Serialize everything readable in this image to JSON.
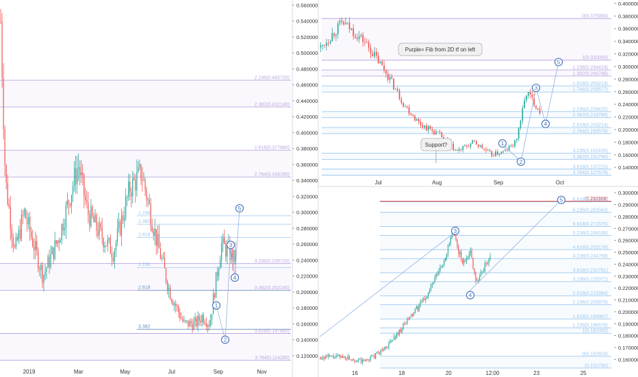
{
  "chart_data": [
    {
      "type": "candlestick",
      "panel": "left",
      "interval_label": "2D",
      "xaxis_labels": [
        "2019",
        "Mar",
        "May",
        "Jul",
        "Sep",
        "Nov"
      ],
      "yaxis_ticks": [
        "0.560000",
        "0.540000",
        "0.520000",
        "0.500000",
        "0.480000",
        "0.460000",
        "0.440000",
        "0.420000",
        "0.400000",
        "0.380000",
        "0.360000",
        "0.340000",
        "0.320000",
        "0.300000",
        "0.280000",
        "0.260000",
        "0.240000",
        "0.220000",
        "0.200000",
        "0.180000",
        "0.160000",
        "0.140000",
        "0.120000"
      ],
      "ylim": [
        0.107,
        0.563
      ],
      "fib_levels": [
        {
          "label": "2.236(0.465720)",
          "value": 0.46572,
          "color": "#b9a6e0"
        },
        {
          "label": "2.382(0.432140)",
          "value": 0.43214,
          "color": "#b9a6e0"
        },
        {
          "label": "2.618(0.377860)",
          "value": 0.37786,
          "color": "#b9a6e0"
        },
        {
          "label": "2.764(0.344280)",
          "value": 0.34428,
          "color": "#b9a6e0"
        },
        {
          "label": "3.236(0.235720)",
          "value": 0.23572,
          "color": "#b9a6e0"
        },
        {
          "label": "3.382(0.202140)",
          "value": 0.20214,
          "color": "#b9a6e0"
        },
        {
          "label": "3.618(0.147860)",
          "value": 0.14786,
          "color": "#b9a6e0"
        },
        {
          "label": "3.764(0.114280)",
          "value": 0.11428,
          "color": "#b9a6e0"
        }
      ],
      "blue_levels": [
        {
          "label": "1.236",
          "value": 0.2955,
          "color": "#9bc6ee"
        },
        {
          "label": "1.382",
          "value": 0.285,
          "color": "#9bc6ee"
        },
        {
          "label": "1.618",
          "value": 0.2684,
          "color": "#9bc6ee"
        },
        {
          "label": "2.236",
          "value": 0.2307,
          "color": "#9bc6ee"
        },
        {
          "label": "2.618",
          "value": 0.2022,
          "color": "#6a8dbf"
        },
        {
          "label": "3.382",
          "value": 0.1532,
          "color": "#6a8dbf"
        }
      ],
      "wave_labels": [
        "1",
        "2",
        "3",
        "4",
        "5"
      ]
    },
    {
      "type": "candlestick",
      "panel": "top-right",
      "xaxis_labels": [
        "Jul",
        "Aug",
        "Sep",
        "Oct"
      ],
      "yaxis_ticks": [
        "0.400000",
        "0.380000",
        "0.360000",
        "0.340000",
        "0.320000",
        "0.300000",
        "0.280000",
        "0.260000",
        "0.240000",
        "0.220000",
        "0.200000",
        "0.180000",
        "0.160000",
        "0.140000"
      ],
      "ylim": [
        0.125,
        0.401
      ],
      "fib_levels": [
        {
          "label": "0(0.375999)",
          "value": 0.375999,
          "color": "#b9a6e0"
        },
        {
          "label": "1(0.310000)",
          "value": 0.31,
          "color": "#b9a6e0"
        },
        {
          "label": "1.236(0.294424)",
          "value": 0.294424,
          "color": "#b9a6e0"
        },
        {
          "label": "1.382(0.284788)",
          "value": 0.284788,
          "color": "#b9a6e0"
        },
        {
          "label": "1.618(0.269213)",
          "value": 0.269213,
          "color": "#9bc6ee"
        },
        {
          "label": "1.764(0.259577)",
          "value": 0.259577,
          "color": "#9bc6ee"
        },
        {
          "label": "2.236(0.228425)",
          "value": 0.228425,
          "color": "#9bc6ee"
        },
        {
          "label": "2.382(0.218789)",
          "value": 0.218789,
          "color": "#9bc6ee"
        },
        {
          "label": "2.618(0.203214)",
          "value": 0.203214,
          "color": "#9bc6ee"
        },
        {
          "label": "2.764(0.193578)",
          "value": 0.193578,
          "color": "#9bc6ee"
        },
        {
          "label": "3.236(0.162426)",
          "value": 0.162426,
          "color": "#9bc6ee"
        },
        {
          "label": "3.382(0.152790)",
          "value": 0.15279,
          "color": "#9bc6ee"
        },
        {
          "label": "3.618(0.137215)",
          "value": 0.137215,
          "color": "#9bc6ee"
        },
        {
          "label": "3.764(0.127579)",
          "value": 0.127579,
          "color": "#9bc6ee"
        }
      ],
      "annotations": [
        "Purple= Fib from 2D tf on left",
        "Support?"
      ],
      "wave_labels": [
        "1",
        "2",
        "3",
        "4",
        "5"
      ]
    },
    {
      "type": "candlestick",
      "panel": "bottom-right",
      "xaxis_labels": [
        "16",
        "18",
        "20",
        "12:00",
        "23",
        "25"
      ],
      "yaxis_ticks": [
        "0.300000",
        "0.290000",
        "0.280000",
        "0.270000",
        "0.260000",
        "0.250000",
        "0.240000",
        "0.230000",
        "0.220000",
        "0.210000",
        "0.200000",
        "0.190000",
        "0.180000",
        "0.170000",
        "0.160000"
      ],
      "ylim": [
        0.151,
        0.303
      ],
      "fib_levels": [
        {
          "label": "(0.292968)",
          "value": 0.292968,
          "color": "#e53935"
        },
        {
          "label": "6.618(0.292321)",
          "value": 0.292321,
          "color": "#9bc6ee"
        },
        {
          "label": "6.236(0.283563)",
          "value": 0.283563,
          "color": "#9bc6ee"
        },
        {
          "label": "5.618(0.271575)",
          "value": 0.271575,
          "color": "#9bc6ee"
        },
        {
          "label": "5.236(0.264166)",
          "value": 0.264166,
          "color": "#9bc6ee"
        },
        {
          "label": "4.618(0.252178)",
          "value": 0.252178,
          "color": "#9bc6ee"
        },
        {
          "label": "4.236(0.244769)",
          "value": 0.244769,
          "color": "#9bc6ee"
        },
        {
          "label": "3.618(0.232781)",
          "value": 0.232781,
          "color": "#9bc6ee"
        },
        {
          "label": "3.236(0.225372)",
          "value": 0.225372,
          "color": "#9bc6ee"
        },
        {
          "label": "2.618(0.213384)",
          "value": 0.213384,
          "color": "#9bc6ee"
        },
        {
          "label": "2.236(0.205975)",
          "value": 0.205975,
          "color": "#9bc6ee"
        },
        {
          "label": "1.618(0.193987)",
          "value": 0.193987,
          "color": "#9bc6ee"
        },
        {
          "label": "1.236(0.186578)",
          "value": 0.186578,
          "color": "#9bc6ee"
        },
        {
          "label": "1(0.182000)",
          "value": 0.182,
          "color": "#9bc6ee"
        },
        {
          "label": "0(0.162603)",
          "value": 0.162603,
          "color": "#9bc6ee"
        },
        {
          "label": "(0.152790)",
          "value": 0.15279,
          "color": "#9bc6ee"
        }
      ],
      "wave_labels": [
        "3",
        "4",
        "5"
      ]
    }
  ],
  "colors": {
    "up": "#26a69a",
    "down": "#ef5350",
    "grid": "#e6e6e6",
    "axis_text": "#333333"
  }
}
